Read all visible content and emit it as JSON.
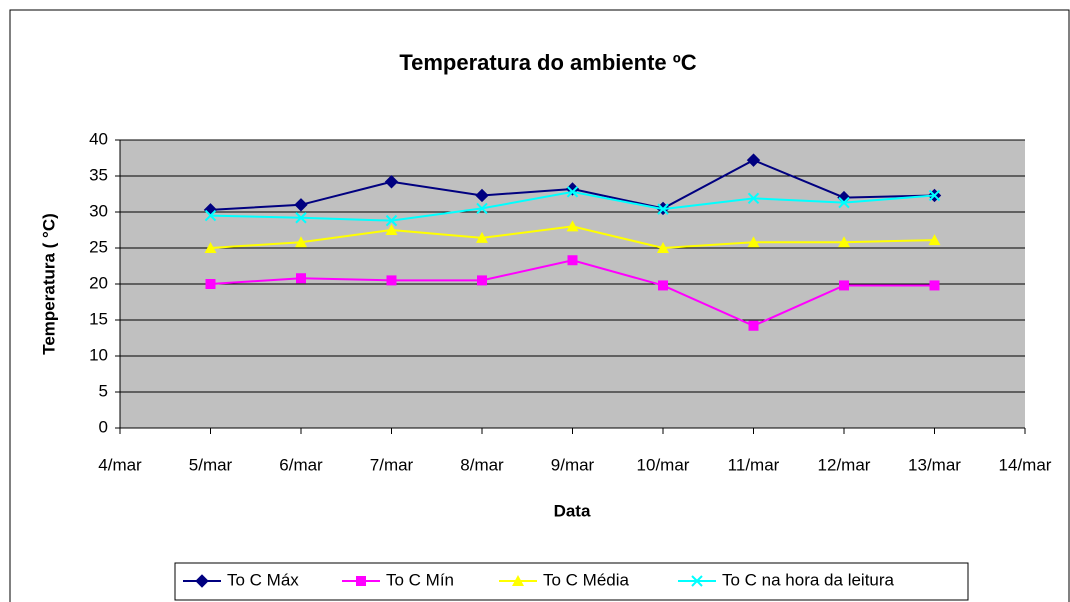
{
  "chart_data": {
    "type": "line",
    "title": "Temperatura do ambiente ºC",
    "x_label": "Data",
    "y_label": "Temperatura ( °C)",
    "categories": [
      "4/mar",
      "5/mar",
      "6/mar",
      "7/mar",
      "8/mar",
      "9/mar",
      "10/mar",
      "11/mar",
      "12/mar",
      "13/mar",
      "14/mar"
    ],
    "series": [
      {
        "name": "To C Máx",
        "color": "#000080",
        "marker": "diamond",
        "values": [
          null,
          30.3,
          31,
          34.2,
          32.3,
          33.2,
          30.5,
          37.2,
          32,
          32.3,
          null
        ]
      },
      {
        "name": "To C Mín",
        "color": "#ff00ff",
        "marker": "square",
        "values": [
          null,
          20,
          20.8,
          20.5,
          20.5,
          23.3,
          19.8,
          14.2,
          19.8,
          19.8,
          null
        ]
      },
      {
        "name": "To C Média",
        "color": "#ffff00",
        "marker": "triangle",
        "values": [
          null,
          25,
          25.8,
          27.5,
          26.4,
          28,
          25,
          25.8,
          25.8,
          26.1,
          null
        ]
      },
      {
        "name": "To C na hora da leitura",
        "color": "#00ffff",
        "marker": "x",
        "values": [
          null,
          29.5,
          29.2,
          28.8,
          30.5,
          32.8,
          30.4,
          31.9,
          31.3,
          32.3,
          null
        ]
      }
    ],
    "ylim": [
      0,
      40
    ],
    "yticks": [
      0,
      5,
      10,
      15,
      20,
      25,
      30,
      35,
      40
    ],
    "grid": true,
    "legend": "bottom"
  }
}
